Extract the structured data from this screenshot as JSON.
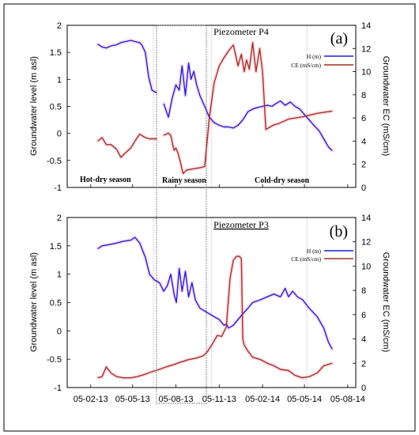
{
  "colors": {
    "h": "#1f1fd6",
    "ce": "#a2311f",
    "halo": "#f6c6dc",
    "frame": "#000000"
  },
  "shared_x_ticks": [
    "05-02-13",
    "05-05-13",
    "05-08-13",
    "05-11-13",
    "05-02-14",
    "05-05-14",
    "05-08-14"
  ],
  "chart_data": [
    {
      "type": "line",
      "panel_label": "(a)",
      "title": "Piezometer P4",
      "ylabel_left": "Groundwater level (m asl)",
      "ylabel_right": "Groundwater EC (mS/cm)",
      "ylim_left": [
        -1,
        2
      ],
      "ylim_right": [
        0,
        14
      ],
      "y_ticks_left": [
        "2",
        "1.5",
        "1",
        "0.5",
        "0",
        "-0.5",
        "-1"
      ],
      "y_ticks_right": [
        "14",
        "12",
        "10",
        "8",
        "6",
        "4",
        "2",
        "0"
      ],
      "season_labels": [
        "Hot-dry season",
        "Rainy season",
        "Cold-dry season"
      ],
      "legend": [
        "H (m)",
        "CE (mS/cm)"
      ],
      "series": [
        {
          "name": "H (m)",
          "axis": "left",
          "x": [
            "2013-02-20",
            "2013-03-01",
            "2013-03-10",
            "2013-03-20",
            "2013-04-01",
            "2013-04-10",
            "2013-04-20",
            "2013-05-01",
            "2013-05-10",
            "2013-05-20",
            "2013-05-25",
            "2013-06-01",
            "2013-06-08",
            "2013-06-15",
            "2013-06-25",
            "null",
            "2013-07-10",
            "2013-07-20",
            "2013-07-28",
            "2013-08-05",
            "2013-08-12",
            "2013-08-18",
            "2013-08-25",
            "2013-09-01",
            "2013-09-06",
            "2013-09-12",
            "2013-09-18",
            "2013-09-25",
            "2013-10-05",
            "2013-10-15",
            "2013-10-25",
            "2013-11-05",
            "2013-11-15",
            "2013-11-25",
            "2013-12-05",
            "2013-12-15",
            "2013-12-25",
            "2014-01-05",
            "2014-01-15",
            "2014-01-25",
            "2014-02-05",
            "2014-02-15",
            "2014-02-25",
            "2014-03-05",
            "2014-03-15",
            "2014-03-25",
            "2014-04-05",
            "2014-04-15",
            "2014-04-25",
            "2014-05-05",
            "2014-05-15",
            "2014-05-25",
            "2014-06-05",
            "2014-06-15",
            "2014-06-25",
            "2014-07-03"
          ],
          "y": [
            1.65,
            1.6,
            1.58,
            1.62,
            1.64,
            1.68,
            1.7,
            1.72,
            1.7,
            1.68,
            1.63,
            1.5,
            1.05,
            0.8,
            0.75,
            null,
            0.55,
            0.3,
            0.65,
            0.9,
            0.8,
            1.25,
            0.7,
            1.3,
            1.0,
            1.15,
            0.9,
            0.7,
            0.5,
            0.3,
            0.2,
            0.15,
            0.12,
            0.12,
            0.1,
            0.15,
            0.25,
            0.4,
            0.45,
            0.48,
            0.5,
            0.52,
            0.5,
            0.55,
            0.6,
            0.52,
            0.58,
            0.5,
            0.45,
            0.35,
            0.25,
            0.15,
            0.05,
            -0.1,
            -0.25,
            -0.32
          ]
        },
        {
          "name": "CE (mS/cm)",
          "axis": "right",
          "x": [
            "2013-02-20",
            "2013-03-01",
            "2013-03-10",
            "2013-03-20",
            "2013-04-01",
            "2013-04-10",
            "2013-04-20",
            "2013-05-01",
            "2013-05-10",
            "2013-05-20",
            "2013-06-01",
            "2013-06-10",
            "2013-06-25",
            "null",
            "2013-07-10",
            "2013-07-20",
            "2013-07-25",
            "2013-08-01",
            "2013-08-05",
            "2013-08-10",
            "2013-08-15",
            "2013-08-20",
            "2013-08-28",
            "2013-09-10",
            "2013-09-25",
            "2013-10-05",
            "2013-10-15",
            "2013-10-25",
            "2013-11-05",
            "2013-11-15",
            "2013-11-25",
            "2013-12-05",
            "2013-12-15",
            "2013-12-22",
            "2013-12-28",
            "2014-01-02",
            "2014-01-08",
            "2014-01-15",
            "2014-01-22",
            "2014-01-30",
            "2014-02-05",
            "2014-02-12",
            "2014-02-20",
            "2014-03-01",
            "2014-03-10",
            "2014-04-01",
            "2014-05-01",
            "2014-06-01",
            "2014-07-03"
          ],
          "y": [
            4.0,
            4.3,
            3.7,
            3.7,
            3.3,
            2.6,
            3.0,
            3.4,
            4.0,
            4.6,
            4.3,
            4.2,
            4.2,
            null,
            4.5,
            4.7,
            4.5,
            3.2,
            3.4,
            2.9,
            2.1,
            1.2,
            1.5,
            1.6,
            1.7,
            1.8,
            6.0,
            9.0,
            10.5,
            11.2,
            11.8,
            12.3,
            10.5,
            11.5,
            10.0,
            11.0,
            10.2,
            12.5,
            10.0,
            12.0,
            10.0,
            5.0,
            5.2,
            5.4,
            5.5,
            5.9,
            6.1,
            6.4,
            6.6
          ]
        }
      ]
    },
    {
      "type": "line",
      "panel_label": "(b)",
      "title": "Piezometer P3",
      "ylabel_left": "Groundwater level (m asl)",
      "ylabel_right": "Groundwater EC (mS/cm)",
      "ylim_left": [
        -1,
        2
      ],
      "ylim_right": [
        0,
        14
      ],
      "y_ticks_left": [
        "2",
        "1.5",
        "1",
        "0.5",
        "0",
        "-0.5",
        "-1"
      ],
      "y_ticks_right": [
        "14",
        "12",
        "10",
        "8",
        "6",
        "4",
        "2",
        "0"
      ],
      "legend": [
        "H (m)",
        "CE (mS/cm)"
      ],
      "series": [
        {
          "name": "H (m)",
          "axis": "left",
          "x": [
            "2013-02-20",
            "2013-03-01",
            "2013-03-15",
            "2013-04-01",
            "2013-04-15",
            "2013-05-01",
            "2013-05-10",
            "2013-05-20",
            "2013-06-01",
            "2013-06-10",
            "2013-06-20",
            "2013-07-01",
            "2013-07-10",
            "2013-07-18",
            "2013-07-25",
            "2013-08-01",
            "2013-08-06",
            "2013-08-12",
            "2013-08-18",
            "2013-08-25",
            "2013-09-01",
            "2013-09-08",
            "2013-09-15",
            "2013-09-25",
            "2013-10-05",
            "2013-10-15",
            "2013-10-25",
            "2013-11-05",
            "2013-11-15",
            "2013-11-20",
            "2013-11-25",
            "2013-12-05",
            "2013-12-15",
            "2013-12-25",
            "2014-01-05",
            "2014-01-15",
            "2014-02-01",
            "2014-02-15",
            "2014-03-01",
            "2014-03-15",
            "2014-03-25",
            "2014-04-01",
            "2014-04-10",
            "2014-04-20",
            "2014-05-01",
            "2014-05-15",
            "2014-06-01",
            "2014-06-15",
            "2014-06-25",
            "2014-07-03"
          ],
          "y": [
            1.45,
            1.5,
            1.52,
            1.55,
            1.58,
            1.6,
            1.65,
            1.55,
            1.3,
            1.0,
            0.9,
            0.85,
            0.7,
            0.8,
            1.0,
            0.65,
            0.5,
            1.1,
            0.7,
            1.05,
            0.6,
            0.85,
            0.55,
            0.4,
            0.35,
            0.3,
            0.25,
            0.2,
            0.1,
            0.12,
            0.05,
            0.1,
            0.2,
            0.3,
            0.4,
            0.5,
            0.55,
            0.6,
            0.65,
            0.6,
            0.75,
            0.6,
            0.7,
            0.6,
            0.55,
            0.4,
            0.25,
            0.05,
            -0.2,
            -0.32
          ]
        },
        {
          "name": "CE (mS/cm)",
          "axis": "right",
          "x": [
            "2013-02-20",
            "2013-03-01",
            "2013-03-10",
            "2013-03-20",
            "2013-04-01",
            "2013-04-15",
            "2013-05-01",
            "2013-05-15",
            "2013-06-01",
            "2013-06-15",
            "2013-07-01",
            "2013-07-15",
            "2013-08-01",
            "2013-08-15",
            "2013-09-01",
            "2013-09-15",
            "2013-10-01",
            "2013-10-10",
            "2013-10-20",
            "2013-11-01",
            "2013-11-10",
            "2013-11-20",
            "2013-11-28",
            "2013-12-05",
            "2013-12-12",
            "2013-12-18",
            "2013-12-22",
            "2013-12-25",
            "2013-12-28",
            "2014-01-05",
            "2014-01-15",
            "2014-02-01",
            "2014-02-15",
            "2014-03-01",
            "2014-03-15",
            "2014-04-01",
            "2014-04-15",
            "2014-05-01",
            "2014-05-15",
            "2014-06-01",
            "2014-06-15",
            "2014-07-03"
          ],
          "y": [
            0.8,
            0.9,
            1.7,
            1.2,
            0.9,
            0.8,
            0.8,
            0.9,
            1.1,
            1.3,
            1.5,
            1.7,
            1.9,
            2.1,
            2.3,
            2.4,
            2.6,
            2.9,
            3.5,
            4.3,
            4.2,
            5.0,
            9.0,
            10.5,
            10.8,
            10.8,
            10.6,
            4.0,
            3.5,
            3.0,
            2.5,
            2.3,
            2.0,
            1.8,
            1.5,
            1.4,
            1.0,
            0.8,
            0.9,
            1.2,
            1.8,
            2.0
          ]
        }
      ]
    }
  ]
}
